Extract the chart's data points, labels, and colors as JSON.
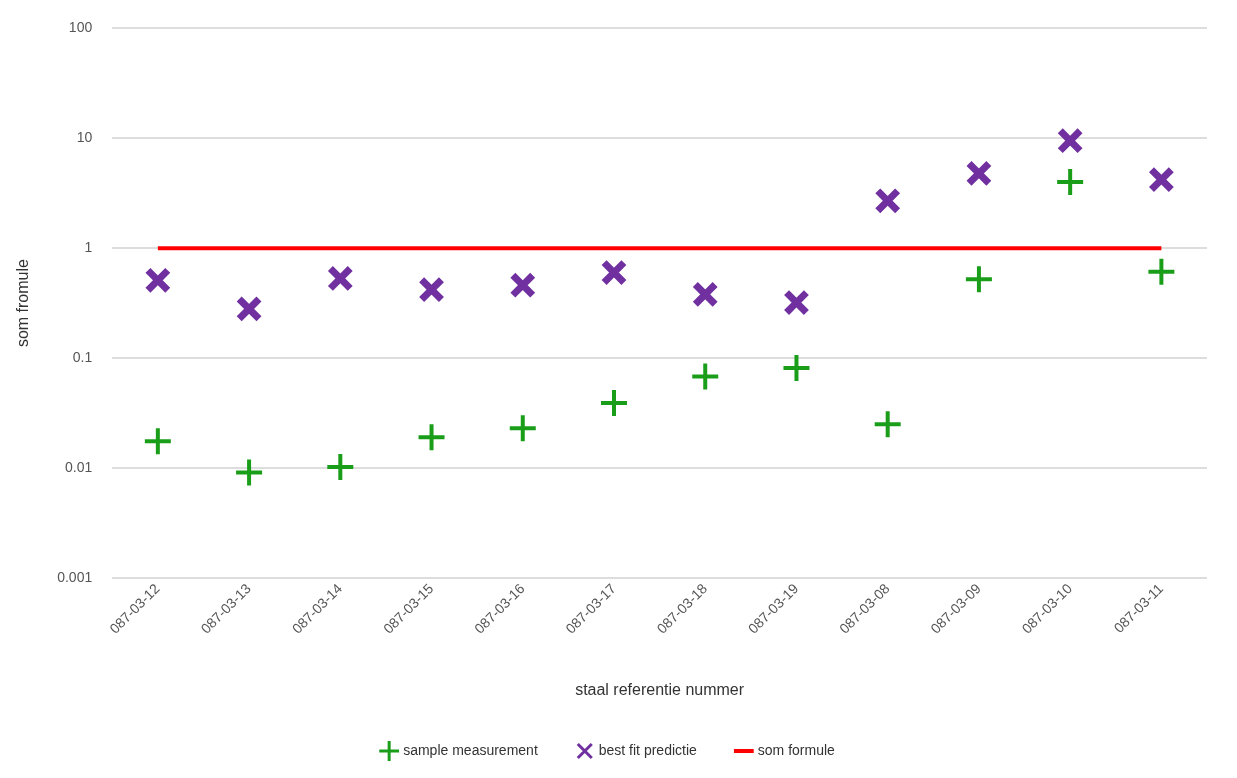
{
  "chart_data": {
    "type": "scatter",
    "xlabel": "staal referentie nummer",
    "ylabel": "som fromule",
    "categories": [
      "087-03-12",
      "087-03-13",
      "087-03-14",
      "087-03-15",
      "087-03-16",
      "087-03-17",
      "087-03-18",
      "087-03-19",
      "087-03-08",
      "087-03-09",
      "087-03-10",
      "087-03-11"
    ],
    "series": [
      {
        "name": "sample measurement",
        "color": "#1a9e1a",
        "marker": "cross",
        "values": [
          0.0175,
          0.0091,
          0.0102,
          0.019,
          0.023,
          0.039,
          0.068,
          0.081,
          0.025,
          0.52,
          4.0,
          0.61
        ]
      },
      {
        "name": "best fit predictie",
        "color": "#7030a0",
        "marker": "x",
        "values": [
          0.51,
          0.28,
          0.53,
          0.42,
          0.46,
          0.6,
          0.38,
          0.32,
          2.7,
          4.8,
          9.5,
          4.2
        ]
      },
      {
        "name": "som formule",
        "type": "line",
        "color": "#ff0000",
        "marker": "none",
        "values": [
          1,
          1,
          1,
          1,
          1,
          1,
          1,
          1,
          1,
          1,
          1,
          1
        ]
      }
    ],
    "log": "y",
    "ylim": [
      0.001,
      100
    ],
    "yticks": [
      0.001,
      0.01,
      0.1,
      1,
      10,
      100
    ],
    "grid": "y",
    "legend": "bottom"
  }
}
